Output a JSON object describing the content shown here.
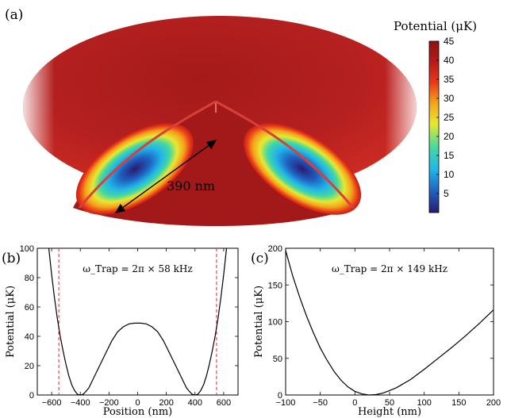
{
  "panel_a": {
    "label": "(a)",
    "scale_label": "390 nm",
    "colorbar": {
      "title": "Potential (μK)",
      "ticks": [
        45,
        40,
        35,
        30,
        25,
        20,
        15,
        10,
        5
      ],
      "range": [
        0,
        45
      ],
      "colors": [
        "#2a1a6e",
        "#1f5fbf",
        "#22b4e8",
        "#46d9a0",
        "#e8e830",
        "#f4a21c",
        "#e83a18",
        "#b81818",
        "#8a1414"
      ]
    }
  },
  "chart_data": [
    {
      "panel": "(b)",
      "type": "line",
      "xlabel": "Position (nm)",
      "ylabel": "Potential (μK)",
      "xlim": [
        -700,
        700
      ],
      "ylim": [
        0,
        100
      ],
      "xticks": [
        -600,
        -400,
        -200,
        0,
        200,
        400,
        600
      ],
      "yticks": [
        0,
        20,
        40,
        60,
        80,
        100
      ],
      "annotation": "ω_Trap = 2π × 58 kHz",
      "series": [
        {
          "x": [
            -620,
            -600,
            -580,
            -560,
            -540,
            -520,
            -500,
            -480,
            -460,
            -440,
            -420,
            -400,
            -380,
            -360,
            -340,
            -320,
            -300,
            -260,
            -220,
            -180,
            -140,
            -100,
            -60,
            -20,
            0,
            20,
            60,
            100,
            140,
            180,
            220,
            260,
            300,
            320,
            340,
            360,
            380,
            400,
            420,
            440,
            460,
            480,
            500,
            520,
            540,
            560,
            580,
            600,
            620
          ],
          "y": [
            100,
            82,
            66,
            52,
            40,
            30,
            21,
            13,
            7,
            3,
            0.5,
            0,
            0.5,
            2.5,
            5,
            9,
            13,
            21,
            29,
            37,
            43,
            46.5,
            48.5,
            49,
            49,
            49,
            48.5,
            46.5,
            43,
            37,
            29,
            21,
            13,
            9,
            5,
            2.5,
            0.5,
            0,
            0.5,
            3,
            7,
            13,
            21,
            30,
            40,
            52,
            66,
            82,
            100
          ]
        }
      ],
      "dashed_lines_x": [
        -550,
        550
      ],
      "dashed_color": "#e8252a"
    },
    {
      "panel": "(c)",
      "type": "line",
      "xlabel": "Height (nm)",
      "ylabel": "Potential (μK)",
      "xlim": [
        -100,
        200
      ],
      "ylim": [
        0,
        200
      ],
      "xticks": [
        -100,
        -50,
        0,
        50,
        100,
        150,
        200
      ],
      "yticks": [
        0,
        50,
        100,
        150,
        200
      ],
      "annotation": "ω_Trap = 2π × 149 kHz",
      "series": [
        {
          "x": [
            -100,
            -90,
            -80,
            -70,
            -60,
            -50,
            -40,
            -30,
            -20,
            -10,
            0,
            10,
            20,
            30,
            40,
            50,
            60,
            80,
            100,
            120,
            140,
            160,
            180,
            200
          ],
          "y": [
            197,
            163,
            134,
            108,
            85,
            64,
            47,
            32,
            20,
            11,
            5,
            1.5,
            0,
            0.5,
            2.5,
            6,
            10,
            21,
            35,
            50,
            65,
            81,
            98,
            116
          ]
        }
      ]
    }
  ]
}
